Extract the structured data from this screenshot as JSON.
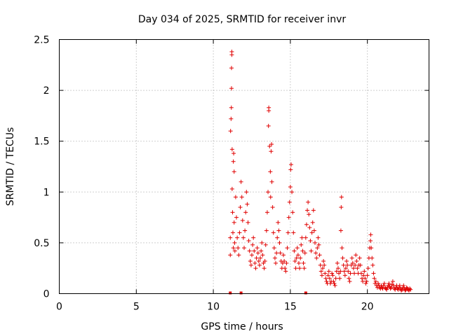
{
  "chart_data": {
    "type": "scatter",
    "title": "Day 034 of 2025, SRMTID for receiver invr",
    "xlabel": "GPS time / hours",
    "ylabel": "SRMTID / TECUs",
    "xlim": [
      0,
      24
    ],
    "ylim": [
      0,
      2.5
    ],
    "grid": true,
    "marker": "+",
    "color": "#e00000",
    "xticks": [
      {
        "value": 0,
        "label": "0"
      },
      {
        "value": 5,
        "label": "5"
      },
      {
        "value": 10,
        "label": "10"
      },
      {
        "value": 15,
        "label": "15"
      },
      {
        "value": 20,
        "label": "20"
      }
    ],
    "yticks": [
      {
        "value": 0,
        "label": "0"
      },
      {
        "value": 0.5,
        "label": "0.5"
      },
      {
        "value": 1,
        "label": "1"
      },
      {
        "value": 1.5,
        "label": "1.5"
      },
      {
        "value": 2,
        "label": "2"
      },
      {
        "value": 2.5,
        "label": "2.5"
      }
    ],
    "series": [
      {
        "name": "SRMTID",
        "points": [
          [
            11.1,
            0.38
          ],
          [
            11.1,
            0.55
          ],
          [
            11.12,
            1.6
          ],
          [
            11.15,
            1.72
          ],
          [
            11.17,
            1.83
          ],
          [
            11.18,
            2.02
          ],
          [
            11.18,
            2.22
          ],
          [
            11.2,
            2.35
          ],
          [
            11.2,
            2.38
          ],
          [
            11.22,
            1.42
          ],
          [
            11.22,
            1.03
          ],
          [
            11.25,
            0.8
          ],
          [
            11.27,
            0.6
          ],
          [
            11.3,
            0.45
          ],
          [
            11.3,
            1.3
          ],
          [
            11.32,
            1.38
          ],
          [
            11.35,
            1.2
          ],
          [
            11.35,
            0.7
          ],
          [
            11.38,
            0.5
          ],
          [
            11.4,
            0.42
          ],
          [
            11.45,
            0.95
          ],
          [
            11.5,
            0.75
          ],
          [
            11.55,
            0.55
          ],
          [
            11.6,
            0.45
          ],
          [
            11.65,
            0.38
          ],
          [
            11.7,
            0.6
          ],
          [
            11.75,
            0.85
          ],
          [
            11.8,
            1.1
          ],
          [
            11.85,
            0.95
          ],
          [
            11.9,
            0.72
          ],
          [
            11.95,
            0.55
          ],
          [
            12.0,
            0.45
          ],
          [
            12.05,
            0.62
          ],
          [
            12.1,
            0.8
          ],
          [
            12.15,
            1.0
          ],
          [
            12.2,
            0.88
          ],
          [
            12.25,
            0.7
          ],
          [
            12.3,
            0.52
          ],
          [
            12.35,
            0.42
          ],
          [
            12.4,
            0.32
          ],
          [
            12.45,
            0.28
          ],
          [
            12.5,
            0.38
          ],
          [
            12.55,
            0.48
          ],
          [
            12.6,
            0.55
          ],
          [
            12.65,
            0.42
          ],
          [
            12.7,
            0.3
          ],
          [
            12.75,
            0.25
          ],
          [
            12.8,
            0.35
          ],
          [
            12.85,
            0.45
          ],
          [
            12.9,
            0.4
          ],
          [
            12.95,
            0.32
          ],
          [
            13.0,
            0.28
          ],
          [
            13.05,
            0.35
          ],
          [
            13.1,
            0.42
          ],
          [
            13.15,
            0.5
          ],
          [
            13.2,
            0.38
          ],
          [
            13.25,
            0.3
          ],
          [
            13.3,
            0.25
          ],
          [
            13.35,
            0.32
          ],
          [
            13.4,
            0.48
          ],
          [
            13.45,
            0.62
          ],
          [
            13.5,
            0.8
          ],
          [
            13.55,
            1.0
          ],
          [
            13.58,
            1.65
          ],
          [
            13.6,
            1.8
          ],
          [
            13.6,
            1.83
          ],
          [
            13.65,
            1.45
          ],
          [
            13.7,
            1.2
          ],
          [
            13.72,
            0.95
          ],
          [
            13.75,
            1.4
          ],
          [
            13.78,
            1.47
          ],
          [
            13.8,
            1.1
          ],
          [
            13.85,
            0.85
          ],
          [
            13.9,
            0.6
          ],
          [
            13.95,
            0.45
          ],
          [
            14.0,
            0.35
          ],
          [
            14.05,
            0.3
          ],
          [
            14.1,
            0.4
          ],
          [
            14.15,
            0.55
          ],
          [
            14.2,
            0.7
          ],
          [
            14.25,
            0.62
          ],
          [
            14.3,
            0.5
          ],
          [
            14.35,
            0.4
          ],
          [
            14.4,
            0.32
          ],
          [
            14.45,
            0.25
          ],
          [
            14.5,
            0.3
          ],
          [
            14.55,
            0.38
          ],
          [
            14.6,
            0.32
          ],
          [
            14.65,
            0.25
          ],
          [
            14.7,
            0.22
          ],
          [
            14.75,
            0.3
          ],
          [
            14.8,
            0.45
          ],
          [
            14.85,
            0.6
          ],
          [
            14.9,
            0.75
          ],
          [
            14.95,
            0.9
          ],
          [
            15.0,
            1.05
          ],
          [
            15.02,
            1.22
          ],
          [
            15.05,
            1.27
          ],
          [
            15.1,
            1.0
          ],
          [
            15.15,
            0.8
          ],
          [
            15.2,
            0.6
          ],
          [
            15.25,
            0.42
          ],
          [
            15.3,
            0.32
          ],
          [
            15.35,
            0.25
          ],
          [
            15.4,
            0.35
          ],
          [
            15.45,
            0.45
          ],
          [
            15.5,
            0.38
          ],
          [
            15.55,
            0.3
          ],
          [
            15.6,
            0.25
          ],
          [
            15.65,
            0.35
          ],
          [
            15.7,
            0.48
          ],
          [
            15.75,
            0.55
          ],
          [
            15.8,
            0.42
          ],
          [
            15.85,
            0.3
          ],
          [
            15.9,
            0.25
          ],
          [
            15.95,
            0.4
          ],
          [
            16.0,
            0.55
          ],
          [
            16.05,
            0.68
          ],
          [
            16.1,
            0.82
          ],
          [
            16.15,
            0.9
          ],
          [
            16.2,
            0.78
          ],
          [
            16.25,
            0.65
          ],
          [
            16.3,
            0.52
          ],
          [
            16.35,
            0.42
          ],
          [
            16.4,
            0.6
          ],
          [
            16.45,
            0.7
          ],
          [
            16.5,
            0.82
          ],
          [
            16.55,
            0.62
          ],
          [
            16.6,
            0.5
          ],
          [
            16.65,
            0.4
          ],
          [
            16.7,
            0.35
          ],
          [
            16.75,
            0.45
          ],
          [
            16.8,
            0.55
          ],
          [
            16.85,
            0.48
          ],
          [
            16.9,
            0.38
          ],
          [
            16.95,
            0.28
          ],
          [
            17.0,
            0.22
          ],
          [
            17.05,
            0.18
          ],
          [
            17.1,
            0.25
          ],
          [
            17.15,
            0.32
          ],
          [
            17.2,
            0.28
          ],
          [
            17.25,
            0.2
          ],
          [
            17.3,
            0.15
          ],
          [
            17.35,
            0.12
          ],
          [
            17.4,
            0.1
          ],
          [
            17.45,
            0.18
          ],
          [
            17.5,
            0.22
          ],
          [
            17.55,
            0.15
          ],
          [
            17.6,
            0.1
          ],
          [
            17.65,
            0.12
          ],
          [
            17.7,
            0.2
          ],
          [
            17.75,
            0.18
          ],
          [
            17.8,
            0.12
          ],
          [
            17.85,
            0.1
          ],
          [
            17.9,
            0.08
          ],
          [
            17.95,
            0.15
          ],
          [
            18.0,
            0.22
          ],
          [
            18.05,
            0.3
          ],
          [
            18.1,
            0.25
          ],
          [
            18.15,
            0.2
          ],
          [
            18.2,
            0.15
          ],
          [
            18.25,
            0.22
          ],
          [
            18.28,
            0.62
          ],
          [
            18.3,
            0.85
          ],
          [
            18.32,
            0.95
          ],
          [
            18.35,
            0.45
          ],
          [
            18.4,
            0.35
          ],
          [
            18.45,
            0.28
          ],
          [
            18.5,
            0.22
          ],
          [
            18.55,
            0.18
          ],
          [
            18.6,
            0.25
          ],
          [
            18.65,
            0.32
          ],
          [
            18.7,
            0.28
          ],
          [
            18.75,
            0.22
          ],
          [
            18.8,
            0.15
          ],
          [
            18.85,
            0.12
          ],
          [
            18.9,
            0.2
          ],
          [
            18.95,
            0.28
          ],
          [
            19.0,
            0.35
          ],
          [
            19.05,
            0.3
          ],
          [
            19.1,
            0.25
          ],
          [
            19.15,
            0.2
          ],
          [
            19.2,
            0.28
          ],
          [
            19.25,
            0.38
          ],
          [
            19.3,
            0.32
          ],
          [
            19.35,
            0.25
          ],
          [
            19.4,
            0.2
          ],
          [
            19.45,
            0.28
          ],
          [
            19.5,
            0.35
          ],
          [
            19.55,
            0.28
          ],
          [
            19.6,
            0.2
          ],
          [
            19.65,
            0.15
          ],
          [
            19.7,
            0.12
          ],
          [
            19.75,
            0.18
          ],
          [
            19.8,
            0.22
          ],
          [
            19.85,
            0.15
          ],
          [
            19.9,
            0.1
          ],
          [
            19.95,
            0.12
          ],
          [
            20.0,
            0.18
          ],
          [
            20.05,
            0.25
          ],
          [
            20.1,
            0.35
          ],
          [
            20.15,
            0.45
          ],
          [
            20.2,
            0.52
          ],
          [
            20.22,
            0.58
          ],
          [
            20.25,
            0.45
          ],
          [
            20.3,
            0.35
          ],
          [
            20.35,
            0.28
          ],
          [
            20.4,
            0.2
          ],
          [
            20.45,
            0.15
          ],
          [
            20.5,
            0.1
          ],
          [
            20.55,
            0.12
          ],
          [
            20.6,
            0.08
          ],
          [
            20.65,
            0.06
          ],
          [
            20.7,
            0.1
          ],
          [
            20.75,
            0.08
          ],
          [
            20.8,
            0.06
          ],
          [
            20.85,
            0.05
          ],
          [
            20.9,
            0.08
          ],
          [
            20.95,
            0.06
          ],
          [
            21.0,
            0.05
          ],
          [
            21.05,
            0.08
          ],
          [
            21.1,
            0.1
          ],
          [
            21.15,
            0.06
          ],
          [
            21.2,
            0.05
          ],
          [
            21.25,
            0.04
          ],
          [
            21.3,
            0.06
          ],
          [
            21.35,
            0.08
          ],
          [
            21.4,
            0.1
          ],
          [
            21.45,
            0.07
          ],
          [
            21.5,
            0.05
          ],
          [
            21.55,
            0.06
          ],
          [
            21.6,
            0.09
          ],
          [
            21.65,
            0.12
          ],
          [
            21.7,
            0.08
          ],
          [
            21.75,
            0.05
          ],
          [
            21.8,
            0.04
          ],
          [
            21.85,
            0.06
          ],
          [
            21.9,
            0.08
          ],
          [
            21.95,
            0.05
          ],
          [
            22.0,
            0.04
          ],
          [
            22.05,
            0.06
          ],
          [
            22.1,
            0.08
          ],
          [
            22.15,
            0.05
          ],
          [
            22.2,
            0.03
          ],
          [
            22.25,
            0.04
          ],
          [
            22.3,
            0.06
          ],
          [
            22.35,
            0.08
          ],
          [
            22.4,
            0.05
          ],
          [
            22.45,
            0.03
          ],
          [
            22.5,
            0.04
          ],
          [
            22.55,
            0.06
          ],
          [
            22.6,
            0.05
          ],
          [
            22.65,
            0.04
          ],
          [
            22.7,
            0.03
          ],
          [
            22.75,
            0.05
          ],
          [
            22.8,
            0.04
          ]
        ],
        "baseline_markers": [
          11.1,
          11.8,
          16.0
        ]
      }
    ]
  }
}
